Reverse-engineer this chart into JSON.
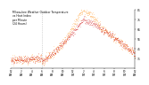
{
  "title": "Milwaukee Weather Outdoor Temperature\nvs Heat Index\nper Minute\n(24 Hours)",
  "title_fontsize": 2.2,
  "temp_color": "#cc0000",
  "heat_color": "#ff8800",
  "ylim": [
    25,
    85
  ],
  "ytick_vals": [
    35,
    45,
    55,
    65,
    75,
    85
  ],
  "ytick_labels": [
    "35",
    "45",
    "55",
    "65",
    "75",
    "85"
  ],
  "background": "#ffffff",
  "vline_minute": 360,
  "xlabel_fontsize": 2.0,
  "ylabel_fontsize": 2.2,
  "scatter_size": 0.4,
  "step": 2,
  "hour_ticks": [
    0,
    120,
    240,
    360,
    480,
    600,
    720,
    840,
    960,
    1080,
    1200,
    1320,
    1440
  ],
  "hour_labels": [
    "12\nAM",
    "2\nAM",
    "4\nAM",
    "6\nAM",
    "8\nAM",
    "10\nAM",
    "12\nPM",
    "2\nPM",
    "4\nPM",
    "6\nPM",
    "8\nPM",
    "10\nPM",
    "12\nAM"
  ]
}
